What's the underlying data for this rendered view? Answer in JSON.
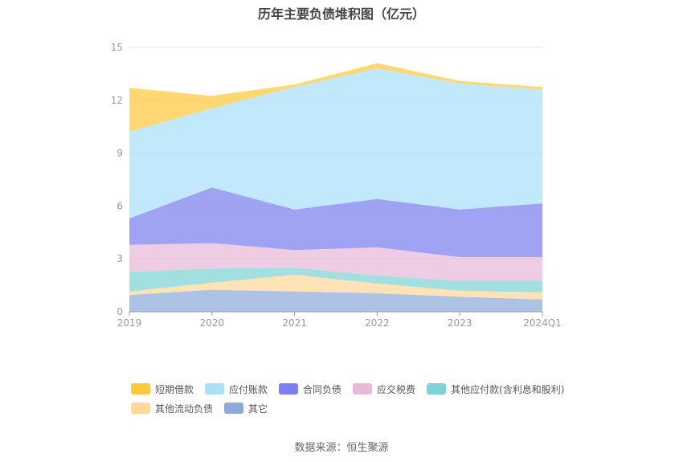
{
  "chart_data": {
    "type": "area",
    "title": "历年主要负债堆积图（亿元）",
    "categories": [
      "2019",
      "2020",
      "2021",
      "2022",
      "2023",
      "2024Q1"
    ],
    "yticks": [
      "0",
      "3",
      "6",
      "9",
      "12",
      "15"
    ],
    "ylim": [
      0,
      15
    ],
    "grid": true,
    "stacked": true,
    "legend_position": "bottom",
    "series": [
      {
        "name": "其它",
        "color": "#8eaadb",
        "values": [
          0.95,
          1.25,
          1.15,
          1.05,
          0.85,
          0.7
        ]
      },
      {
        "name": "其他流动负债",
        "color": "#ffd89a",
        "values": [
          0.2,
          0.4,
          0.95,
          0.55,
          0.35,
          0.4
        ]
      },
      {
        "name": "其他应付款(含利息和股利)",
        "color": "#7dd3d6",
        "values": [
          1.1,
          0.8,
          0.4,
          0.45,
          0.55,
          0.65
        ]
      },
      {
        "name": "应交税费",
        "color": "#e8b9d8",
        "values": [
          1.55,
          1.45,
          1.0,
          1.6,
          1.35,
          1.35
        ]
      },
      {
        "name": "合同负债",
        "color": "#7b7ff0",
        "values": [
          1.5,
          3.15,
          2.3,
          2.75,
          2.7,
          3.05
        ]
      },
      {
        "name": "应付账款",
        "color": "#a9e0fa",
        "values": [
          4.9,
          4.5,
          6.95,
          7.4,
          7.15,
          6.45
        ]
      },
      {
        "name": "短期借款",
        "color": "#ffc83d",
        "values": [
          2.5,
          0.7,
          0.15,
          0.3,
          0.15,
          0.15
        ]
      }
    ]
  },
  "legend_order": [
    6,
    5,
    4,
    3,
    2,
    1,
    0
  ],
  "source": "数据来源：恒生聚源"
}
